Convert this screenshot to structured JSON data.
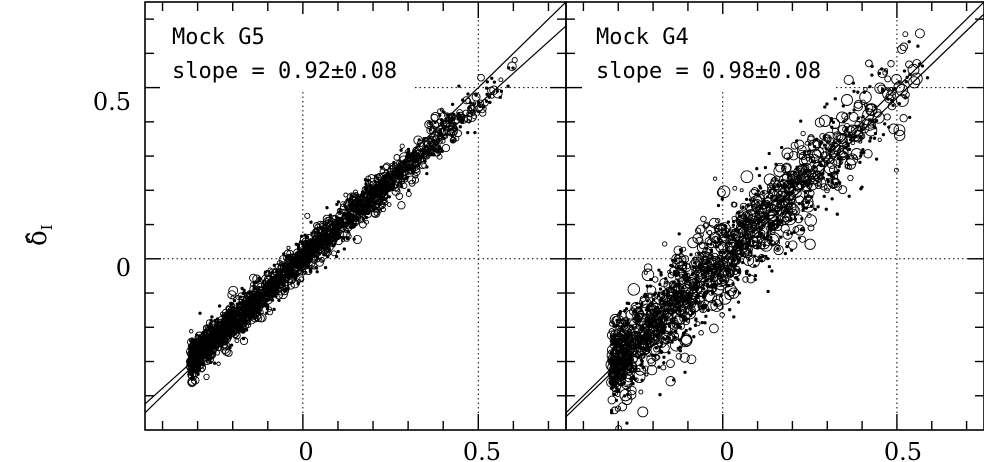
{
  "chart_data": {
    "type": "scatter",
    "ylabel": "δ̂",
    "ylabel_subscript": "I",
    "xlim": [
      -0.45,
      0.75
    ],
    "ylim": [
      -0.5,
      0.75
    ],
    "grid": "dotted lines at 0 and 0.5",
    "xticks": [
      {
        "value": 0,
        "label": "0"
      },
      {
        "value": 0.5,
        "label": "0.5"
      }
    ],
    "yticks": [
      {
        "value": 0,
        "label": "0"
      },
      {
        "value": 0.5,
        "label": "0.5"
      }
    ],
    "panels": [
      {
        "name": "Mock G5",
        "slope_text": "slope = 0.92±0.08",
        "slope": 0.92,
        "fit_lines": [
          {
            "slope": 1.0,
            "intercept": 0.0
          },
          {
            "slope": 0.92,
            "intercept": -0.01
          }
        ],
        "cloud": {
          "x_range": [
            -0.32,
            0.62
          ],
          "relation": {
            "slope": 0.92,
            "intercept": 0.0
          },
          "scatter_sd": 0.025,
          "n_points": 2600
        }
      },
      {
        "name": "Mock G4",
        "slope_text": "slope = 0.98±0.08",
        "slope": 0.98,
        "fit_lines": [
          {
            "slope": 1.0,
            "intercept": 0.0
          },
          {
            "slope": 0.98,
            "intercept": -0.02
          }
        ],
        "cloud": {
          "x_range": [
            -0.32,
            0.62
          ],
          "relation": {
            "slope": 0.98,
            "intercept": 0.0
          },
          "scatter_sd": 0.06,
          "n_points": 2000
        }
      }
    ]
  }
}
